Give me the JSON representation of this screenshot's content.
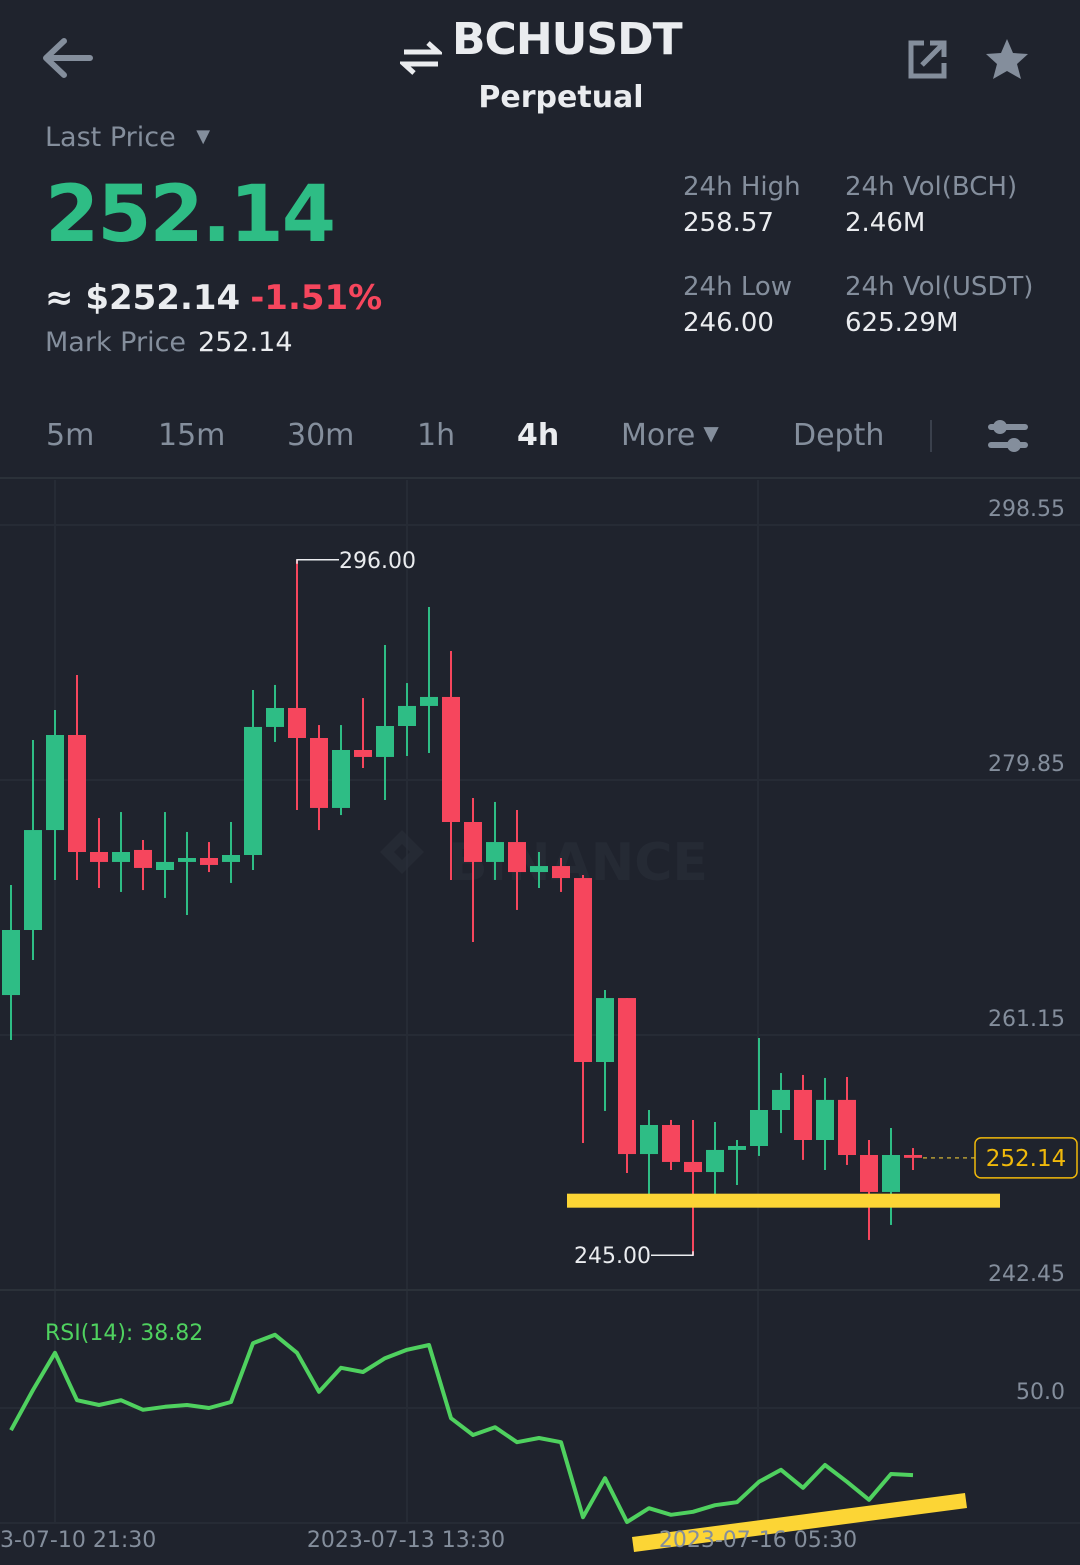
{
  "header": {
    "symbol": "BCHUSDT",
    "contract_type": "Perpetual",
    "icons": {
      "back": "arrow-left-icon",
      "swap": "swap-arrows-icon",
      "share": "share-icon",
      "favorite": "star-icon"
    }
  },
  "ticker": {
    "last_price_label": "Last Price",
    "last_price": "252.14",
    "approx_usd": "≈ $252.14",
    "change_pct": "-1.51%",
    "mark_price_label": "Mark Price",
    "mark_price": "252.14",
    "stats": [
      {
        "label": "24h High",
        "value": "258.57"
      },
      {
        "label": "24h Vol(BCH)",
        "value": "2.46M"
      },
      {
        "label": "24h Low",
        "value": "246.00"
      },
      {
        "label": "24h Vol(USDT)",
        "value": "625.29M"
      }
    ]
  },
  "intervals": {
    "items": [
      "5m",
      "15m",
      "30m",
      "1h",
      "4h",
      "More",
      "Depth"
    ],
    "active": "4h"
  },
  "colors": {
    "up": "#2ebd85",
    "down": "#f6465d",
    "rsi": "#4fd15f",
    "drawing": "#fcd535",
    "background": "#1f232d"
  },
  "chart_data": {
    "type": "candlestick",
    "interval": "4h",
    "watermark": "BINANCE",
    "y_ticks": [
      "298.55",
      "279.85",
      "261.15",
      "242.45"
    ],
    "ylim": [
      242.45,
      298.55
    ],
    "x_ticks": [
      "3-07-10 21:30",
      "2023-07-13 13:30",
      "2023-07-16 05:30"
    ],
    "high_marker": "296.00",
    "low_marker": "245.00",
    "current_price": "252.14",
    "ohlc": [
      [
        264.08,
        272.15,
        260.78,
        268.85
      ],
      [
        268.85,
        282.78,
        266.65,
        276.18
      ],
      [
        276.18,
        284.98,
        272.52,
        283.15
      ],
      [
        283.15,
        287.55,
        272.52,
        274.57
      ],
      [
        274.57,
        277.06,
        271.93,
        273.84
      ],
      [
        273.84,
        277.5,
        271.64,
        274.57
      ],
      [
        274.72,
        275.45,
        271.78,
        273.4
      ],
      [
        273.25,
        277.5,
        271.2,
        273.84
      ],
      [
        273.84,
        276.04,
        269.95,
        274.13
      ],
      [
        274.13,
        275.3,
        273.1,
        273.62
      ],
      [
        273.84,
        276.77,
        272.3,
        274.35
      ],
      [
        274.35,
        286.45,
        273.25,
        283.74
      ],
      [
        283.74,
        286.82,
        282.64,
        285.13
      ],
      [
        285.13,
        296.0,
        277.65,
        282.93
      ],
      [
        282.93,
        283.88,
        276.18,
        277.8
      ],
      [
        277.8,
        283.88,
        277.28,
        282.05
      ],
      [
        282.05,
        285.86,
        280.73,
        281.54
      ],
      [
        281.54,
        289.75,
        278.38,
        283.81
      ],
      [
        283.81,
        286.96,
        281.61,
        285.28
      ],
      [
        285.28,
        292.54,
        281.83,
        285.94
      ],
      [
        285.94,
        289.31,
        272.52,
        276.77
      ],
      [
        276.77,
        278.53,
        267.97,
        273.84
      ],
      [
        273.84,
        278.24,
        272.52,
        275.3
      ],
      [
        275.3,
        277.65,
        270.32,
        273.1
      ],
      [
        273.1,
        274.57,
        271.93,
        273.54
      ],
      [
        273.54,
        274.13,
        271.64,
        272.66
      ],
      [
        272.66,
        272.88,
        253.23,
        259.17
      ],
      [
        259.17,
        264.45,
        255.58,
        263.86
      ],
      [
        263.86,
        263.86,
        251.03,
        252.42
      ],
      [
        252.42,
        255.65,
        249.42,
        254.55
      ],
      [
        254.55,
        254.92,
        251.25,
        251.84
      ],
      [
        251.84,
        254.92,
        245.0,
        251.1
      ],
      [
        251.1,
        254.77,
        249.42,
        252.72
      ],
      [
        252.72,
        253.45,
        250.15,
        253.01
      ],
      [
        253.01,
        260.93,
        252.28,
        255.65
      ],
      [
        255.65,
        258.36,
        253.96,
        257.12
      ],
      [
        257.12,
        258.22,
        251.99,
        253.45
      ],
      [
        253.45,
        258.0,
        251.25,
        256.39
      ],
      [
        256.39,
        258.07,
        251.62,
        252.35
      ],
      [
        252.35,
        253.45,
        246.12,
        249.64
      ],
      [
        249.64,
        254.33,
        247.22,
        252.35
      ],
      [
        252.35,
        252.86,
        251.25,
        252.14
      ]
    ],
    "support_line_price": 249.0,
    "rsi": {
      "label": "RSI(14): 38.82",
      "tick": "50.0",
      "values": [
        46.3,
        53.0,
        59.2,
        51.3,
        50.5,
        51.3,
        49.7,
        50.2,
        50.5,
        50.0,
        51.0,
        60.8,
        62.2,
        59.2,
        52.7,
        56.7,
        56.0,
        58.3,
        59.7,
        60.5,
        48.3,
        45.5,
        46.8,
        44.3,
        45.0,
        44.3,
        31.8,
        38.3,
        31.0,
        33.3,
        32.2,
        32.7,
        33.8,
        34.3,
        37.7,
        39.7,
        36.7,
        40.5,
        37.7,
        34.7,
        39.0,
        38.82
      ]
    }
  }
}
